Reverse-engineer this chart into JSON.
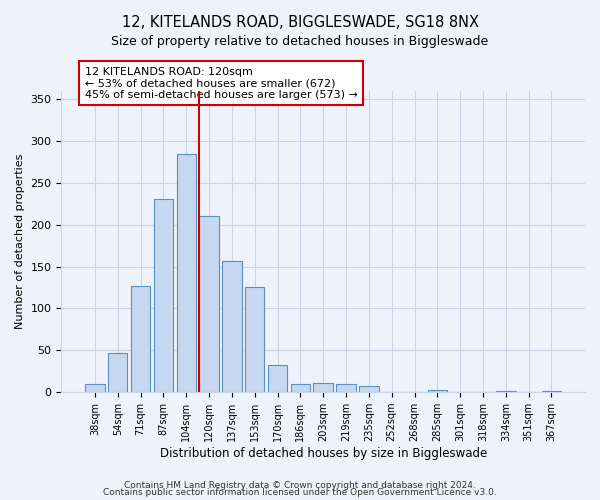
{
  "title": "12, KITELANDS ROAD, BIGGLESWADE, SG18 8NX",
  "subtitle": "Size of property relative to detached houses in Biggleswade",
  "xlabel": "Distribution of detached houses by size in Biggleswade",
  "ylabel": "Number of detached properties",
  "bar_labels": [
    "38sqm",
    "54sqm",
    "71sqm",
    "87sqm",
    "104sqm",
    "120sqm",
    "137sqm",
    "153sqm",
    "170sqm",
    "186sqm",
    "203sqm",
    "219sqm",
    "235sqm",
    "252sqm",
    "268sqm",
    "285sqm",
    "301sqm",
    "318sqm",
    "334sqm",
    "351sqm",
    "367sqm"
  ],
  "bar_values": [
    10,
    47,
    127,
    231,
    284,
    210,
    157,
    126,
    33,
    10,
    11,
    10,
    8,
    0,
    0,
    3,
    0,
    0,
    2,
    0,
    2
  ],
  "bar_color": "#c5d8f0",
  "bar_edge_color": "#5a8fc3",
  "vline_x": 4.575,
  "vline_color": "#cc0000",
  "annotation_text": "12 KITELANDS ROAD: 120sqm\n← 53% of detached houses are smaller (672)\n45% of semi-detached houses are larger (573) →",
  "annotation_box_color": "#ffffff",
  "annotation_box_edge_color": "#cc0000",
  "ylim": [
    0,
    360
  ],
  "yticks": [
    0,
    50,
    100,
    150,
    200,
    250,
    300,
    350
  ],
  "footer1": "Contains HM Land Registry data © Crown copyright and database right 2024.",
  "footer2": "Contains public sector information licensed under the Open Government Licence v3.0.",
  "background_color": "#eef2fb",
  "grid_color": "#c8d4e8"
}
